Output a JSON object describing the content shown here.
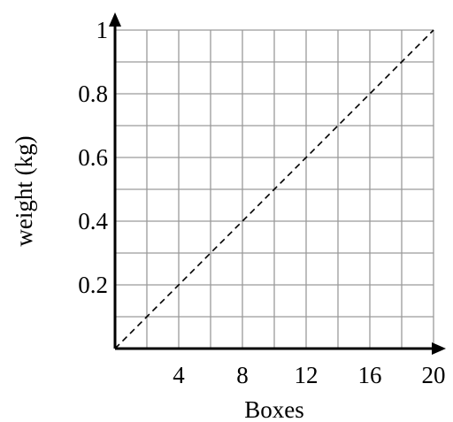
{
  "chart_data": {
    "type": "line",
    "title": "",
    "xlabel": "Boxes",
    "ylabel": "weight (kg)",
    "xlim": [
      0,
      20
    ],
    "ylim": [
      0,
      1
    ],
    "grid": true,
    "x_ticks": [
      4,
      8,
      12,
      16,
      20
    ],
    "x_tick_labels": [
      "4",
      "8",
      "12",
      "16",
      "20"
    ],
    "y_ticks": [
      0.2,
      0.4,
      0.6,
      0.8,
      1
    ],
    "y_tick_labels": [
      "0.2",
      "0.4",
      "0.6",
      "0.8",
      "1"
    ],
    "series": [
      {
        "style": "dashed",
        "color": "#000000",
        "x": [
          0,
          20
        ],
        "y": [
          0,
          1
        ]
      }
    ]
  },
  "colors": {
    "grid": "#9a9a9a",
    "axis": "#000000",
    "line": "#000000"
  }
}
